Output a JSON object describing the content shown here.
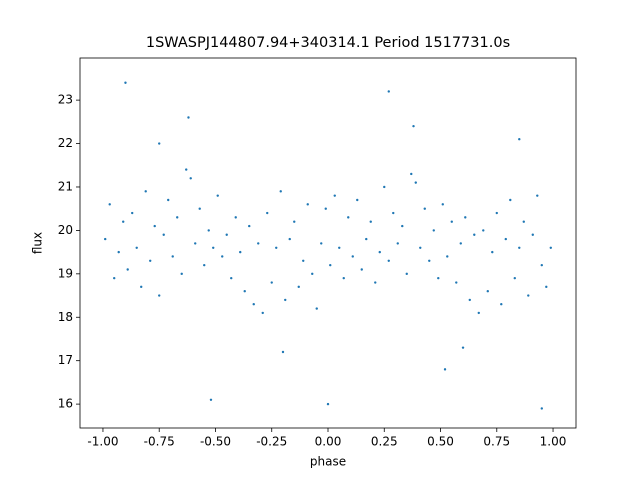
{
  "chart_data": {
    "type": "scatter",
    "title": "1SWASPJ144807.94+340314.1 Period 1517731.0s",
    "x_label": "phase",
    "y_label": "flux",
    "color": "#1f77b4",
    "xlim": [
      -1.102,
      1.102
    ],
    "ylim": [
      15.45,
      23.97
    ],
    "xticks": [
      {
        "value": -1,
        "label": "-1.00"
      },
      {
        "value": -0.75,
        "label": "-0.75"
      },
      {
        "value": -0.5,
        "label": "-0.50"
      },
      {
        "value": -0.25,
        "label": "-0.25"
      },
      {
        "value": 0,
        "label": "0.00"
      },
      {
        "value": 0.25,
        "label": "0.25"
      },
      {
        "value": 0.5,
        "label": "0.50"
      },
      {
        "value": 0.75,
        "label": "0.75"
      },
      {
        "value": 1,
        "label": "1.00"
      }
    ],
    "yticks": [
      16,
      17,
      18,
      19,
      20,
      21,
      22,
      23
    ],
    "x": [
      -0.99,
      -0.97,
      -0.95,
      -0.93,
      -0.91,
      -0.89,
      -0.87,
      -0.85,
      -0.83,
      -0.81,
      -0.79,
      -0.77,
      -0.75,
      -0.73,
      -0.71,
      -0.69,
      -0.67,
      -0.65,
      -0.63,
      -0.62,
      -0.61,
      -0.59,
      -0.57,
      -0.55,
      -0.53,
      -0.51,
      -0.49,
      -0.47,
      -0.45,
      -0.43,
      -0.41,
      -0.39,
      -0.37,
      -0.35,
      -0.33,
      -0.31,
      -0.29,
      -0.27,
      -0.25,
      -0.23,
      -0.21,
      -0.19,
      -0.17,
      -0.15,
      -0.13,
      -0.11,
      -0.09,
      -0.07,
      -0.05,
      -0.03,
      -0.01,
      0.01,
      0.03,
      0.05,
      0.07,
      0.09,
      0.11,
      0.13,
      0.15,
      0.17,
      0.19,
      0.21,
      0.23,
      0.25,
      0.27,
      0.29,
      0.31,
      0.33,
      0.35,
      0.37,
      0.38,
      0.39,
      0.41,
      0.43,
      0.45,
      0.47,
      0.49,
      0.51,
      0.53,
      0.55,
      0.57,
      0.59,
      0.61,
      0.63,
      0.65,
      0.67,
      0.69,
      0.71,
      0.73,
      0.75,
      0.77,
      0.79,
      0.81,
      0.83,
      0.85,
      0.87,
      0.89,
      0.91,
      0.93,
      0.95,
      0.97,
      0.99,
      -0.9,
      -0.52,
      -0.2,
      0.0,
      0.27,
      0.52,
      0.85,
      -0.75,
      0.6,
      0.95
    ],
    "y": [
      19.8,
      20.6,
      18.9,
      19.5,
      20.2,
      19.1,
      20.4,
      19.6,
      18.7,
      20.9,
      19.3,
      20.1,
      18.5,
      19.9,
      20.7,
      19.4,
      20.3,
      19.0,
      21.4,
      22.6,
      21.2,
      19.7,
      20.5,
      19.2,
      20.0,
      19.6,
      20.8,
      19.4,
      19.9,
      18.9,
      20.3,
      19.5,
      18.6,
      20.1,
      18.3,
      19.7,
      18.1,
      20.4,
      18.8,
      19.6,
      20.9,
      18.4,
      19.8,
      20.2,
      18.7,
      19.3,
      20.6,
      19.0,
      18.2,
      19.7,
      20.5,
      19.2,
      20.8,
      19.6,
      18.9,
      20.3,
      19.4,
      20.7,
      19.1,
      19.8,
      20.2,
      18.8,
      19.5,
      21.0,
      19.3,
      20.4,
      19.7,
      20.1,
      19.0,
      21.3,
      22.4,
      21.1,
      19.6,
      20.5,
      19.3,
      20.0,
      18.9,
      20.6,
      19.4,
      20.2,
      18.8,
      19.7,
      20.3,
      18.4,
      19.9,
      18.1,
      20.0,
      18.6,
      19.5,
      20.4,
      18.3,
      19.8,
      20.7,
      18.9,
      19.6,
      20.2,
      18.5,
      19.9,
      20.8,
      19.2,
      18.7,
      19.6,
      23.4,
      16.1,
      17.2,
      16.0,
      23.2,
      16.8,
      22.1,
      22.0,
      17.3,
      15.9
    ]
  }
}
